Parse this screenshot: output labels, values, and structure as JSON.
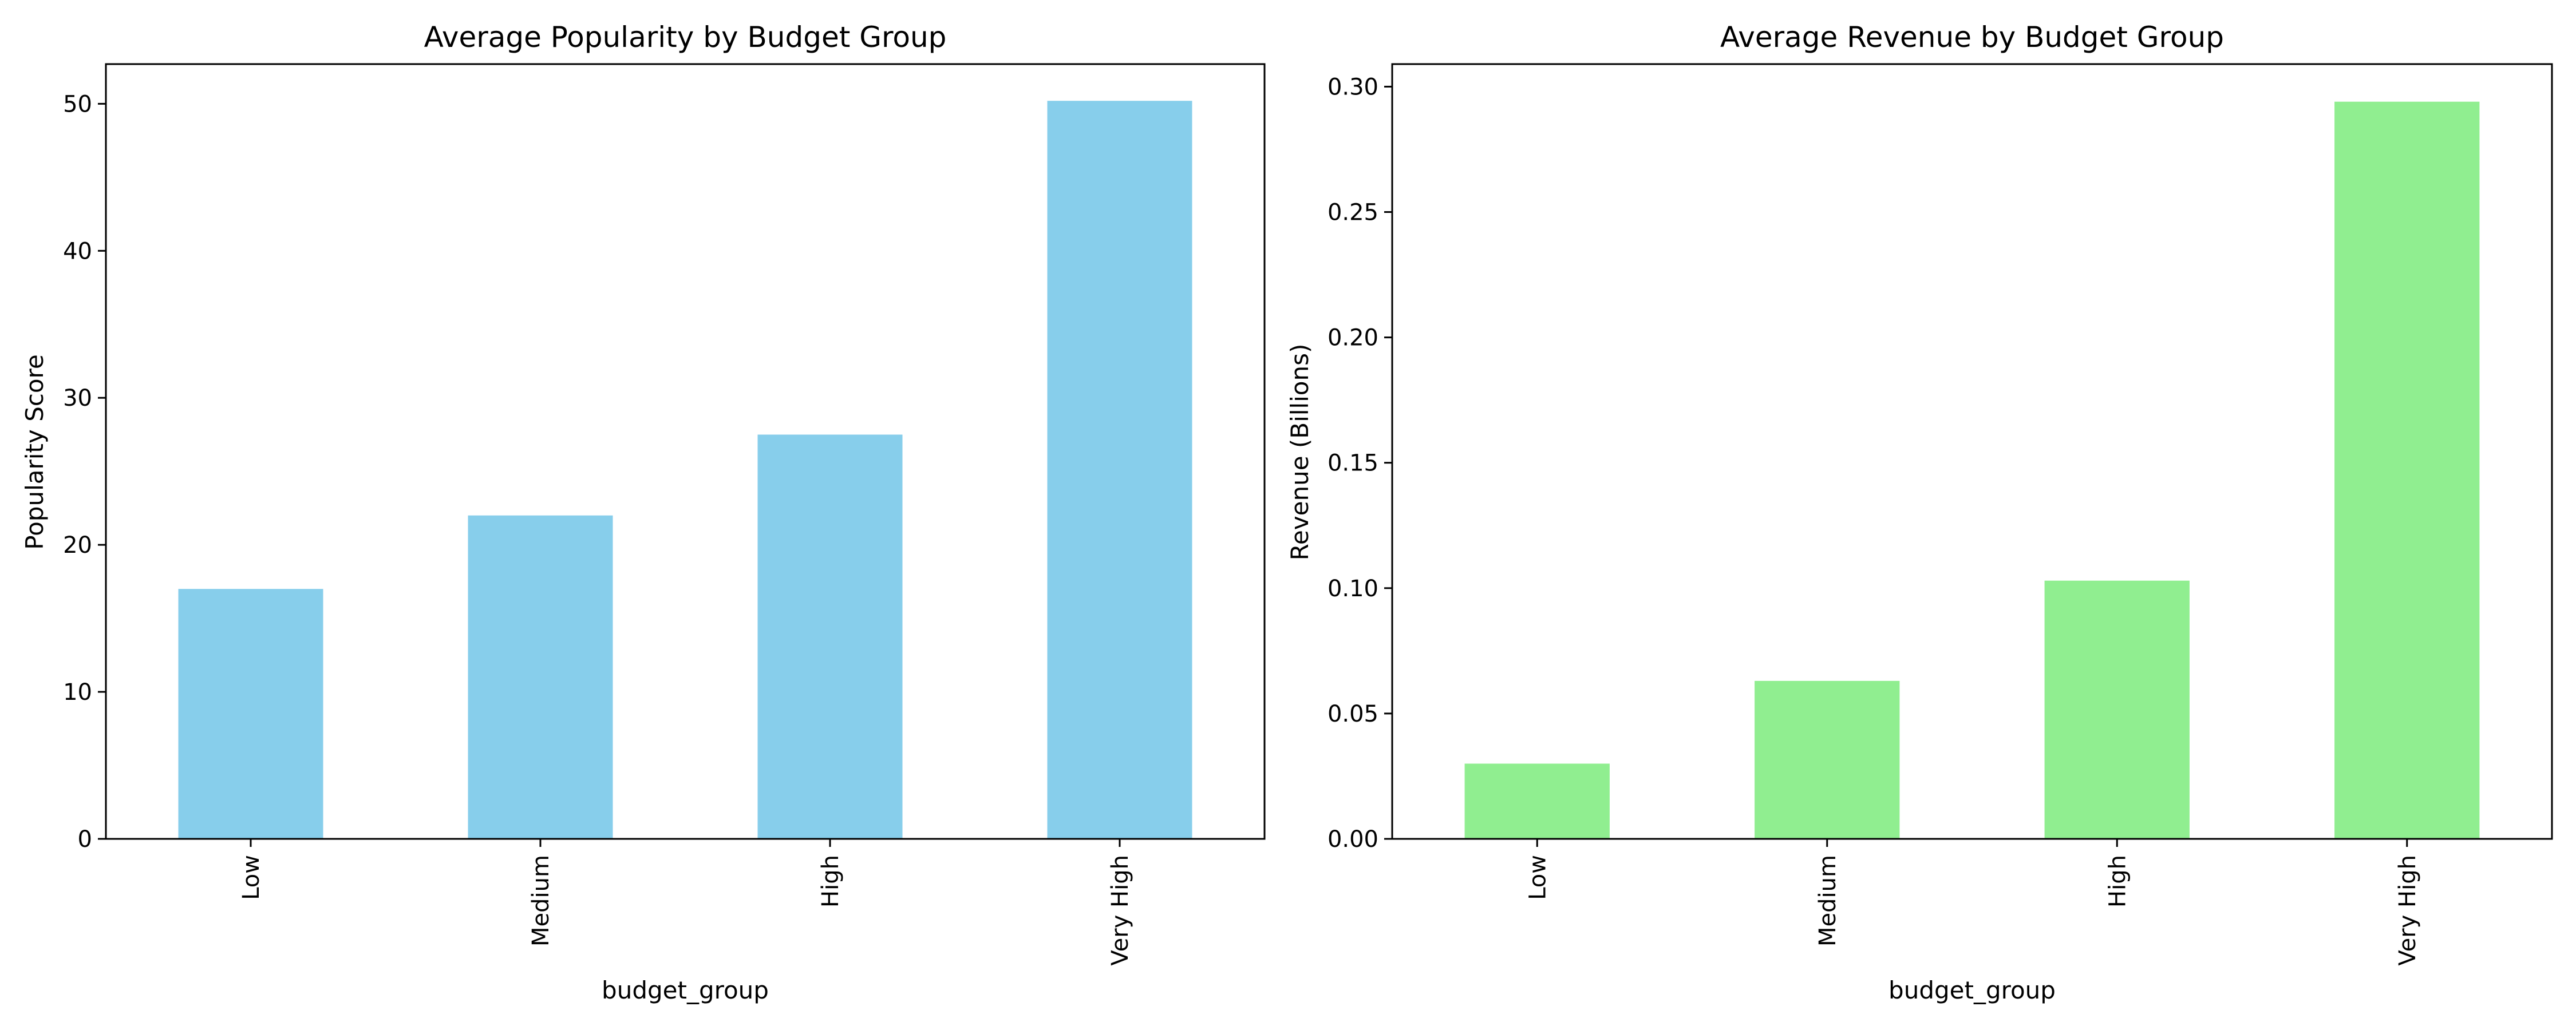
{
  "chart_data": [
    {
      "type": "bar",
      "title": "Average Popularity by Budget Group",
      "xlabel": "budget_group",
      "ylabel": "Popularity Score",
      "categories": [
        "Low",
        "Medium",
        "High",
        "Very High"
      ],
      "values": [
        17.0,
        22.0,
        27.5,
        50.2
      ],
      "ylim": [
        0,
        52.7
      ],
      "yticks": [
        0,
        10,
        20,
        30,
        40,
        50
      ],
      "ytick_labels": [
        "0",
        "10",
        "20",
        "30",
        "40",
        "50"
      ],
      "color": "#87CEEB",
      "grid": false,
      "legend": "none"
    },
    {
      "type": "bar",
      "title": "Average Revenue by Budget Group",
      "xlabel": "budget_group",
      "ylabel": "Revenue (Billions)",
      "categories": [
        "Low",
        "Medium",
        "High",
        "Very High"
      ],
      "values": [
        0.03,
        0.063,
        0.103,
        0.294
      ],
      "ylim": [
        0,
        0.309
      ],
      "yticks": [
        0,
        0.05,
        0.1,
        0.15,
        0.2,
        0.25,
        0.3
      ],
      "ytick_labels": [
        "0.00",
        "0.05",
        "0.10",
        "0.15",
        "0.20",
        "0.25",
        "0.30"
      ],
      "color": "#90EE90",
      "grid": false,
      "legend": "none"
    }
  ]
}
